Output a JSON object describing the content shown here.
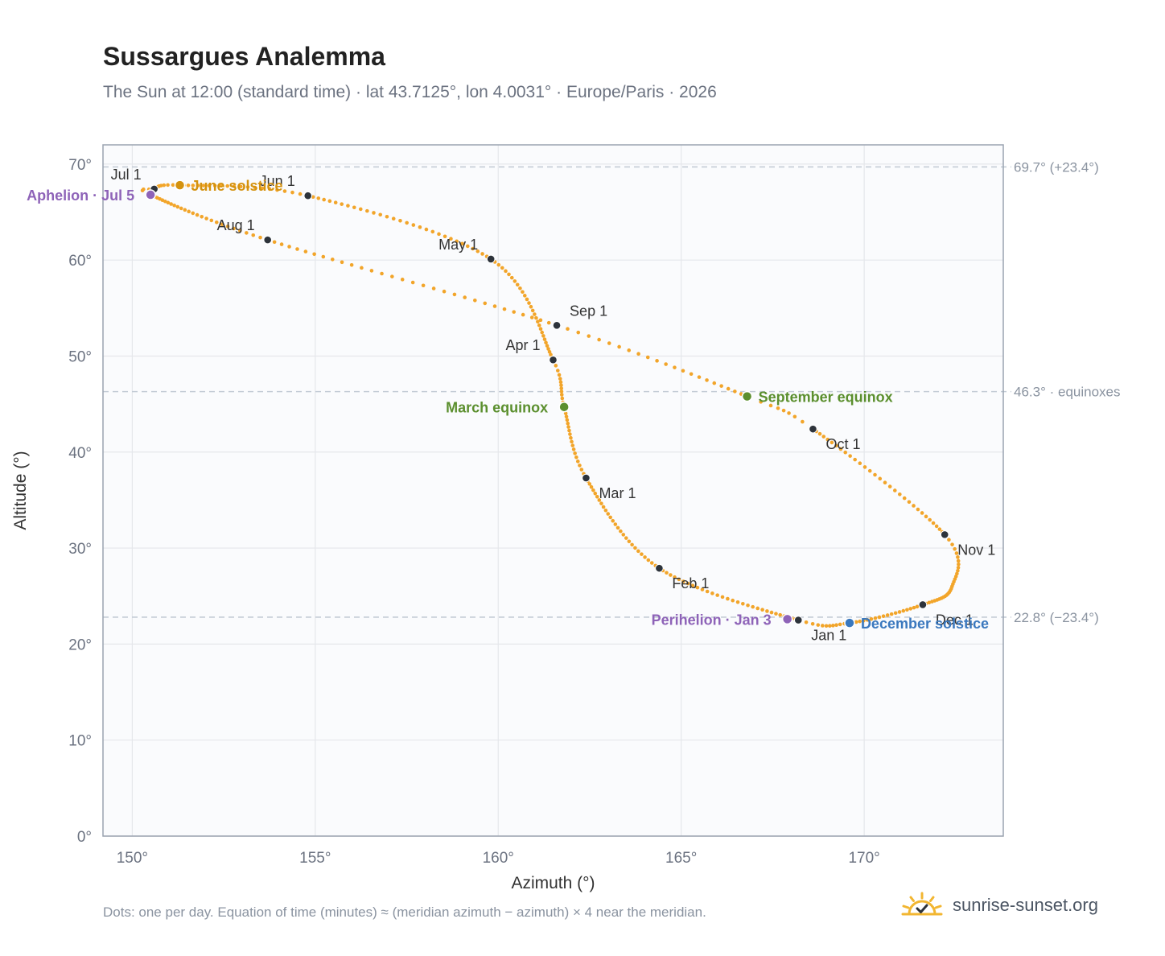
{
  "header": {
    "title": "Sussargues Analemma",
    "subtitle": "The Sun at 12:00 (standard time) · lat 43.7125°, lon 4.0031° · Europe/Paris · 2026"
  },
  "footer": {
    "note": "Dots: one per day. Equation of time (minutes) ≈ (meridian azimuth − azimuth) × 4 near the meridian.",
    "brand": "sunrise-sunset.org",
    "brand_icon": "sun-check-icon"
  },
  "colors": {
    "path": "#f2a52a",
    "month_marker": "#2d333b",
    "equinox": "#5b8f2e",
    "june_solstice": "#d4920f",
    "december_solstice": "#3a78be",
    "apsides": "#8e63b8",
    "grid": "#e5e7eb",
    "reference": "#c4ccd6",
    "plot_bg": "#fafbfd",
    "frame": "#9aa3b0"
  },
  "chart_data": {
    "type": "scatter",
    "xlabel": "Azimuth (°)",
    "ylabel": "Altitude (°)",
    "xlim": [
      149.2,
      173.8
    ],
    "ylim": [
      0,
      72
    ],
    "xticks": [
      150,
      155,
      160,
      165,
      170
    ],
    "xtick_labels": [
      "150°",
      "155°",
      "160°",
      "165°",
      "170°"
    ],
    "yticks": [
      0,
      10,
      20,
      30,
      40,
      50,
      60,
      70
    ],
    "ytick_labels": [
      "0°",
      "10°",
      "20°",
      "30°",
      "40°",
      "50°",
      "60°",
      "70°"
    ],
    "grid": true,
    "reference_lines": [
      {
        "y": 69.7,
        "label": "69.7° (+23.4°)"
      },
      {
        "y": 46.3,
        "label": "46.3° · equinoxes"
      },
      {
        "y": 22.8,
        "label": "22.8° (−23.4°)"
      }
    ],
    "path_anchors": [
      {
        "day": 1,
        "x": 168.2,
        "y": 22.5
      },
      {
        "day": 32,
        "x": 164.4,
        "y": 27.9
      },
      {
        "day": 60,
        "x": 162.4,
        "y": 37.3
      },
      {
        "day": 79,
        "x": 161.8,
        "y": 44.7
      },
      {
        "day": 91,
        "x": 161.5,
        "y": 49.6
      },
      {
        "day": 121,
        "x": 159.8,
        "y": 60.1
      },
      {
        "day": 152,
        "x": 154.8,
        "y": 66.7
      },
      {
        "day": 172,
        "x": 151.3,
        "y": 67.8
      },
      {
        "day": 182,
        "x": 150.6,
        "y": 67.4
      },
      {
        "day": 186,
        "x": 150.5,
        "y": 66.8
      },
      {
        "day": 213,
        "x": 153.7,
        "y": 62.1
      },
      {
        "day": 244,
        "x": 161.6,
        "y": 53.2
      },
      {
        "day": 266,
        "x": 166.8,
        "y": 45.8
      },
      {
        "day": 274,
        "x": 168.6,
        "y": 42.4
      },
      {
        "day": 305,
        "x": 172.2,
        "y": 31.4
      },
      {
        "day": 320,
        "x": 172.4,
        "y": 26.0
      },
      {
        "day": 335,
        "x": 171.6,
        "y": 24.1
      },
      {
        "day": 355,
        "x": 169.6,
        "y": 22.2
      },
      {
        "day": 366,
        "x": 168.2,
        "y": 22.5
      }
    ],
    "month_markers": [
      {
        "label": "Jan 1",
        "x": 168.2,
        "y": 22.5,
        "label_pos": "below-right"
      },
      {
        "label": "Feb 1",
        "x": 164.4,
        "y": 27.9,
        "label_pos": "below-right"
      },
      {
        "label": "Mar 1",
        "x": 162.4,
        "y": 37.3,
        "label_pos": "below-right"
      },
      {
        "label": "Apr 1",
        "x": 161.5,
        "y": 49.6,
        "label_pos": "above-left"
      },
      {
        "label": "May 1",
        "x": 159.8,
        "y": 60.1,
        "label_pos": "above-left"
      },
      {
        "label": "Jun 1",
        "x": 154.8,
        "y": 66.7,
        "label_pos": "above-left"
      },
      {
        "label": "Jul 1",
        "x": 150.6,
        "y": 67.4,
        "label_pos": "above-left"
      },
      {
        "label": "Aug 1",
        "x": 153.7,
        "y": 62.1,
        "label_pos": "above-left"
      },
      {
        "label": "Sep 1",
        "x": 161.6,
        "y": 53.2,
        "label_pos": "above-right"
      },
      {
        "label": "Oct 1",
        "x": 168.6,
        "y": 42.4,
        "label_pos": "below-right"
      },
      {
        "label": "Nov 1",
        "x": 172.2,
        "y": 31.4,
        "label_pos": "below-right"
      },
      {
        "label": "Dec 1",
        "x": 171.6,
        "y": 24.1,
        "label_pos": "below-right"
      }
    ],
    "events": [
      {
        "label": "June solstice",
        "x": 151.3,
        "y": 67.8,
        "color_key": "june_solstice",
        "label_pos": "right"
      },
      {
        "label": "Aphelion · Jul 5",
        "x": 150.5,
        "y": 66.8,
        "color_key": "apsides",
        "label_pos": "left"
      },
      {
        "label": "March equinox",
        "x": 161.8,
        "y": 44.7,
        "color_key": "equinox",
        "label_pos": "left"
      },
      {
        "label": "September equinox",
        "x": 166.8,
        "y": 45.8,
        "color_key": "equinox",
        "label_pos": "right"
      },
      {
        "label": "Perihelion · Jan 3",
        "x": 167.9,
        "y": 22.6,
        "color_key": "apsides",
        "label_pos": "left"
      },
      {
        "label": "December solstice",
        "x": 169.6,
        "y": 22.2,
        "color_key": "december_solstice",
        "label_pos": "right"
      }
    ]
  }
}
